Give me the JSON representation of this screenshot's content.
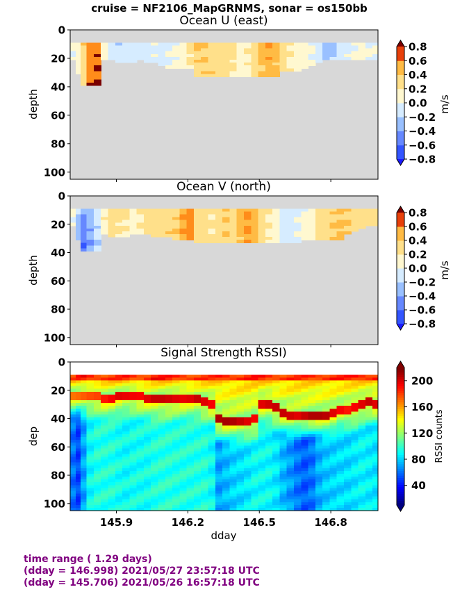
{
  "suptitle": "cruise = NF2106_MapGRNMS,  sonar = os150bb",
  "panels": [
    {
      "title": "Ocean U (east)",
      "ylabel": "depth",
      "cbar_label": "m/s",
      "cbar_ticks": [
        "0.8",
        "0.6",
        "0.4",
        "0.2",
        "0.0",
        "−0.2",
        "−0.4",
        "−0.6",
        "−0.8"
      ]
    },
    {
      "title": "Ocean V (north)",
      "ylabel": "depth",
      "cbar_label": "m/s",
      "cbar_ticks": [
        "0.8",
        "0.6",
        "0.4",
        "0.2",
        "0.0",
        "−0.2",
        "−0.4",
        "−0.6",
        "−0.8"
      ]
    },
    {
      "title": "Signal Strength RSSI)",
      "ylabel": "dep",
      "cbar_label": "RSSI counts",
      "cbar_ticks": [
        "200",
        "160",
        "120",
        "80",
        "40"
      ]
    }
  ],
  "y_ticks": [
    "0",
    "20",
    "40",
    "60",
    "80",
    "100"
  ],
  "x_ticks": [
    "145.9",
    "146.2",
    "146.5",
    "146.8"
  ],
  "xlabel": "dday",
  "footer": {
    "line1": "time range ( 1.29 days)",
    "line2": "(dday = 146.998) 2021/05/27 23:57:18 UTC",
    "line3": "(dday = 145.706) 2021/05/26 16:57:18 UTC"
  },
  "colors": {
    "nodata": "#d8d8d8",
    "footer_text": "#800080",
    "velocity_levels": [
      "#1a1aff",
      "#3355ff",
      "#6688ff",
      "#99c0ff",
      "#d6ecff",
      "#fff8d0",
      "#ffe08a",
      "#ffbb44",
      "#ff8c1a",
      "#e8400a",
      "#b01010",
      "#7a0000"
    ]
  },
  "chart_data": [
    {
      "type": "heatmap",
      "title": "Ocean U (east)",
      "xlabel": "",
      "ylabel": "depth",
      "xlim": [
        145.706,
        146.998
      ],
      "ylim": [
        105,
        0
      ],
      "colorbar": {
        "label": "m/s",
        "range": [
          -0.8,
          0.8
        ],
        "step": 0.2
      },
      "bins_start_depth": 9,
      "bin_size": 2,
      "nodata_color": "#d8d8d8",
      "x": [
        145.72,
        145.74,
        145.76,
        145.79,
        145.82,
        145.85,
        145.88,
        145.91,
        145.94,
        145.97,
        146.0,
        146.03,
        146.06,
        146.09,
        146.12,
        146.15,
        146.18,
        146.21,
        146.24,
        146.27,
        146.3,
        146.33,
        146.36,
        146.39,
        146.42,
        146.45,
        146.48,
        146.51,
        146.54,
        146.57,
        146.6,
        146.63,
        146.66,
        146.69,
        146.72,
        146.75,
        146.78,
        146.81,
        146.84,
        146.87,
        146.9,
        146.93,
        146.96,
        146.99
      ],
      "max_depth": [
        20,
        30,
        38,
        38,
        38,
        21,
        20,
        22,
        22,
        22,
        21,
        22,
        22,
        25,
        27,
        27,
        27,
        27,
        33,
        33,
        33,
        33,
        33,
        33,
        33,
        33,
        33,
        33,
        33,
        33,
        28,
        28,
        28,
        26,
        24,
        22,
        20,
        20,
        20,
        21,
        21,
        21,
        21,
        21
      ],
      "velocity_surface": [
        0.05,
        0.15,
        0.35,
        0.7,
        0.75,
        0.2,
        -0.1,
        -0.15,
        -0.15,
        -0.1,
        -0.1,
        -0.1,
        -0.05,
        -0.1,
        0.0,
        0.05,
        0.1,
        0.3,
        0.45,
        0.4,
        0.3,
        0.25,
        0.35,
        0.3,
        0.15,
        0.2,
        0.3,
        0.55,
        0.6,
        0.45,
        0.35,
        0.2,
        0.1,
        0.15,
        0.05,
        -0.05,
        -0.3,
        -0.35,
        -0.1,
        -0.05,
        0.05,
        0.1,
        0.05,
        0.05
      ],
      "velocity_deep": [
        0.0,
        0.1,
        0.25,
        0.75,
        0.8,
        0.1,
        -0.1,
        -0.1,
        -0.1,
        -0.1,
        -0.05,
        -0.1,
        -0.05,
        -0.1,
        -0.05,
        0.05,
        0.05,
        0.2,
        0.3,
        0.35,
        0.35,
        0.3,
        0.3,
        0.2,
        0.1,
        0.15,
        0.25,
        0.4,
        0.5,
        0.45,
        0.3,
        0.15,
        0.05,
        0.1,
        0.0,
        -0.1,
        -0.25,
        -0.2,
        -0.1,
        -0.05,
        0.0,
        0.05,
        0.0,
        0.0
      ]
    },
    {
      "type": "heatmap",
      "title": "Ocean V (north)",
      "xlabel": "",
      "ylabel": "depth",
      "xlim": [
        145.706,
        146.998
      ],
      "ylim": [
        105,
        0
      ],
      "colorbar": {
        "label": "m/s",
        "range": [
          -0.8,
          0.8
        ],
        "step": 0.2
      },
      "bins_start_depth": 9,
      "bin_size": 2,
      "nodata_color": "#d8d8d8",
      "x": [
        145.72,
        145.74,
        145.76,
        145.79,
        145.82,
        145.85,
        145.88,
        145.91,
        145.94,
        145.97,
        146.0,
        146.03,
        146.06,
        146.09,
        146.12,
        146.15,
        146.18,
        146.21,
        146.24,
        146.27,
        146.3,
        146.33,
        146.36,
        146.39,
        146.42,
        146.45,
        146.48,
        146.51,
        146.54,
        146.57,
        146.6,
        146.63,
        146.66,
        146.69,
        146.72,
        146.75,
        146.78,
        146.81,
        146.84,
        146.87,
        146.9,
        146.93,
        146.96,
        146.99
      ],
      "max_depth": [
        20,
        30,
        38,
        38,
        38,
        26,
        28,
        28,
        28,
        26,
        26,
        26,
        28,
        28,
        28,
        30,
        30,
        30,
        33,
        33,
        33,
        33,
        33,
        33,
        33,
        33,
        33,
        33,
        33,
        33,
        33,
        33,
        33,
        31,
        31,
        31,
        31,
        30,
        30,
        26,
        24,
        22,
        21,
        21
      ],
      "velocity_surface": [
        0.0,
        -0.2,
        -0.4,
        -0.3,
        -0.1,
        0.2,
        0.35,
        0.3,
        0.25,
        0.15,
        0.2,
        0.3,
        0.3,
        0.25,
        0.3,
        0.35,
        0.55,
        0.65,
        0.3,
        0.3,
        0.25,
        0.35,
        0.4,
        0.3,
        0.5,
        0.65,
        0.55,
        0.3,
        0.2,
        0.1,
        -0.1,
        -0.15,
        -0.05,
        0.05,
        0.1,
        0.25,
        0.3,
        0.35,
        0.4,
        0.35,
        0.3,
        0.3,
        0.3,
        0.3
      ],
      "velocity_deep": [
        0.0,
        -0.3,
        -0.6,
        -0.4,
        -0.2,
        0.1,
        0.25,
        0.2,
        0.2,
        0.1,
        0.15,
        0.25,
        0.3,
        0.3,
        0.35,
        0.4,
        0.6,
        0.7,
        0.3,
        0.25,
        0.2,
        0.3,
        0.35,
        0.3,
        0.45,
        0.6,
        0.5,
        0.25,
        0.15,
        0.05,
        -0.1,
        -0.1,
        0.0,
        0.1,
        0.15,
        0.3,
        0.35,
        0.4,
        0.45,
        0.4,
        0.35,
        0.3,
        0.3,
        0.3
      ]
    },
    {
      "type": "heatmap",
      "title": "Signal Strength RSSI)",
      "xlabel": "dday",
      "ylabel": "dep",
      "xlim": [
        145.706,
        146.998
      ],
      "ylim": [
        105,
        0
      ],
      "colorbar": {
        "label": "RSSI counts",
        "range": [
          10,
          220
        ],
        "ticks": [
          40,
          80,
          120,
          160,
          200
        ]
      },
      "bins_start_depth": 9,
      "bin_size": 2,
      "x": [
        145.72,
        145.74,
        145.76,
        145.79,
        145.82,
        145.85,
        145.88,
        145.91,
        145.94,
        145.97,
        146.0,
        146.03,
        146.06,
        146.09,
        146.12,
        146.15,
        146.18,
        146.21,
        146.24,
        146.27,
        146.3,
        146.33,
        146.36,
        146.39,
        146.42,
        146.45,
        146.48,
        146.51,
        146.54,
        146.57,
        146.6,
        146.63,
        146.66,
        146.69,
        146.72,
        146.75,
        146.78,
        146.81,
        146.84,
        146.87,
        146.9,
        146.93,
        146.96,
        146.99
      ],
      "surface_rssi": [
        175,
        185,
        190,
        188,
        185,
        182,
        180,
        182,
        185,
        183,
        182,
        185,
        190,
        188,
        185,
        184,
        186,
        183,
        182,
        180,
        180,
        185,
        188,
        186,
        184,
        185,
        187,
        186,
        185,
        184,
        183,
        182,
        181,
        182,
        184,
        185,
        186,
        187,
        185,
        184,
        186,
        188,
        187,
        186
      ],
      "scattering_layer_depth": [
        24,
        24,
        24,
        24,
        24,
        26,
        26,
        25,
        24,
        24,
        25,
        26,
        27,
        27,
        27,
        26,
        26,
        26,
        26,
        28,
        30,
        41,
        42,
        42,
        42,
        42,
        40,
        30,
        30,
        33,
        36,
        38,
        38,
        38,
        38,
        38,
        38,
        37,
        34,
        34,
        33,
        30,
        29,
        30
      ],
      "scattering_layer_rssi": [
        170,
        172,
        175,
        178,
        180,
        190,
        195,
        200,
        198,
        196,
        195,
        200,
        205,
        205,
        203,
        200,
        198,
        200,
        205,
        200,
        195,
        210,
        212,
        210,
        205,
        200,
        195,
        200,
        203,
        205,
        205,
        203,
        200,
        205,
        210,
        210,
        208,
        200,
        195,
        190,
        195,
        200,
        205,
        200
      ],
      "deep_rssi": [
        60,
        50,
        70,
        90,
        95,
        95,
        95,
        92,
        90,
        92,
        92,
        92,
        95,
        96,
        96,
        95,
        95,
        95,
        95,
        95,
        90,
        70,
        75,
        80,
        82,
        85,
        90,
        90,
        90,
        85,
        75,
        68,
        60,
        55,
        60,
        72,
        78,
        80,
        82,
        82,
        85,
        88,
        86,
        84
      ]
    }
  ]
}
